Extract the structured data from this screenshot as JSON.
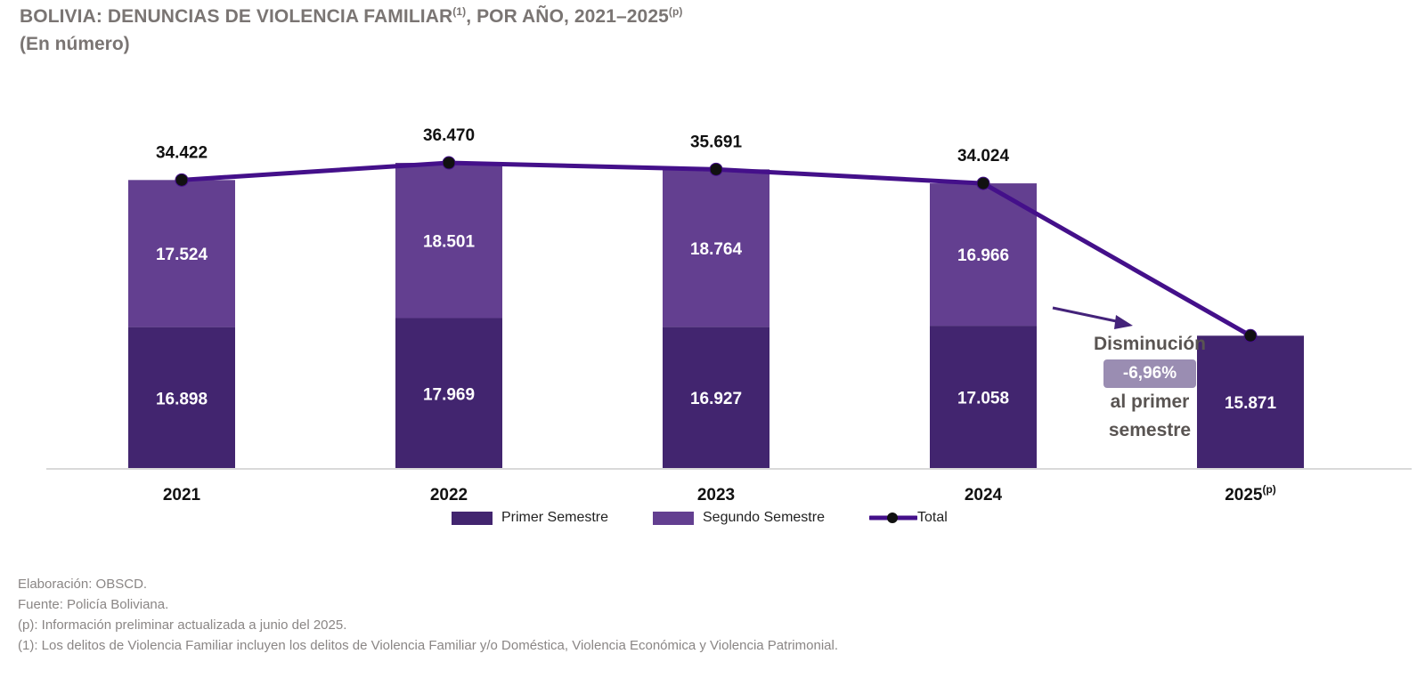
{
  "header": {
    "title_main": "BOLIVIA: DENUNCIAS DE VIOLENCIA FAMILIAR",
    "title_sup1": "(1)",
    "title_rest": ", POR AÑO, 2021–2025",
    "title_sup2": "(p)",
    "subtitle": "(En número)"
  },
  "colors": {
    "primer_semestre": "#42256f",
    "segundo_semestre": "#633f90",
    "total_line": "#44108a",
    "marker": "#111111",
    "axis": "#d9d9d9",
    "annotation_pill": "#9a8db2"
  },
  "chart_data": {
    "type": "bar",
    "stacked": true,
    "title": "BOLIVIA: DENUNCIAS DE VIOLENCIA FAMILIAR(1), POR AÑO, 2021–2025(p)",
    "subtitle": "(En número)",
    "xlabel": "",
    "ylabel": "",
    "categories": [
      "2021",
      "2022",
      "2023",
      "2024",
      "2025"
    ],
    "category_sups": [
      "",
      "",
      "",
      "",
      "(p)"
    ],
    "series": [
      {
        "name": "Primer Semestre",
        "type": "bar",
        "values": [
          16898,
          17969,
          16927,
          17058,
          15871
        ],
        "labels": [
          "16.898",
          "17.969",
          "16.927",
          "17.058",
          "15.871"
        ]
      },
      {
        "name": "Segundo Semestre",
        "type": "bar",
        "values": [
          17524,
          18501,
          18764,
          16966,
          null
        ],
        "labels": [
          "17.524",
          "18.501",
          "18.764",
          "16.966",
          ""
        ]
      },
      {
        "name": "Total",
        "type": "line",
        "values": [
          34422,
          36470,
          35691,
          34024,
          15871
        ],
        "labels": [
          "34.422",
          "36.470",
          "35.691",
          "34.024",
          ""
        ]
      }
    ],
    "ylim": [
      0,
      36470
    ],
    "grid": false,
    "y_axis_visible": false,
    "legend": {
      "position": "bottom",
      "entries": [
        "Primer Semestre",
        "Segundo Semestre",
        "Total"
      ]
    },
    "annotation": {
      "line1": "Disminución",
      "value": "-6,96%",
      "line3": "al primer",
      "line4": "semestre"
    }
  },
  "legend": {
    "primer": "Primer Semestre",
    "segundo": "Segundo Semestre",
    "total": "Total"
  },
  "notes": [
    "Elaboración: OBSCD.",
    "Fuente: Policía Boliviana.",
    "(p): Información preliminar actualizada a junio del 2025.",
    "(1): Los delitos de Violencia Familiar incluyen los delitos de Violencia Familiar y/o Doméstica, Violencia Económica y Violencia Patrimonial."
  ]
}
